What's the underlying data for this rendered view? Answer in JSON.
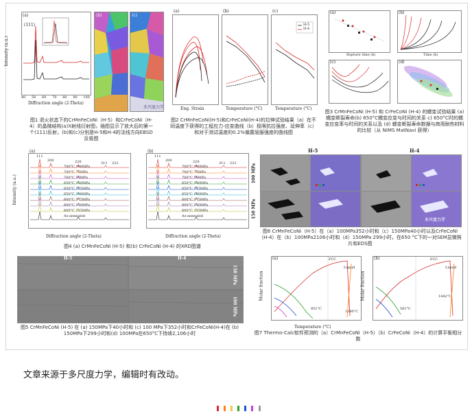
{
  "figures": {
    "fig1": {
      "caption": "图1 退火状态下的CrMnFeCoNi（H-5）和CrFeCoNi（H-4）的晶微结构(a)X射线衍射图，插图显示了放大后的第一个(111)反射，(b)和(c)分别是H-5和H-4的法线方向EBSD反极图",
      "panel_a": "(a)",
      "panel_b": "(b)",
      "panel_c": "(c)",
      "peak_111": "(111)",
      "xlabel": "Diffraction angle (2-Theta)",
      "ylabel": "Intensity (a.u.)",
      "xticks": [
        "40",
        "50",
        "60",
        "70",
        "80",
        "90",
        "100"
      ]
    },
    "fig2": {
      "caption": "图2 CrMnFeCoNi(H-5)和CrFeCoNi(H-4)的拉伸试验结果（a）在不同温度下获得的工程应力-应变曲线（b）极限抗拉强度、延伸率（c）和对于测试温度的0.2%偏置屈服强度的曲线图",
      "panel_a": "(a)",
      "panel_b": "(b)",
      "panel_c": "(c)",
      "xlabel_a": "Eng. Strain",
      "xlabel_bc": "Temperature (°C)",
      "legend": [
        "H-5",
        "H-4"
      ]
    },
    "fig3": {
      "caption": "图3 CrMnFeCoNi (H-5) 和 CrFeCoNi (H-4) 的蠕变试验结果 (a) 蠕变断裂寿命(b) 650°C蠕变应变与时间的关系 c) 650°C时的蠕变应变率与时间的关系以及 (d) 蠕变断裂寿命数据与商用耐热材料的比较（从 NIMS MatNavi 获得）",
      "panels": [
        "(a)",
        "(b)",
        "(c)",
        "(d)"
      ],
      "xlabel_a": "Rupture time (h)",
      "xlabel_b": "Time (h)"
    },
    "fig4": {
      "caption": "图4 (a) CrMnFeCoNi (H-5) 和(b) CrFeCoNi (H-4) 的XRD图谱",
      "panel_a": "(a)",
      "panel_b": "(b)",
      "xlabel": "Diffraction angle (2-Theta)",
      "ylabel": "Intensity (a.u.)",
      "peaks": [
        "111",
        "200",
        "220",
        "311",
        "222"
      ],
      "xticks": [
        "40",
        "50",
        "60",
        "70",
        "80",
        "90",
        "100"
      ],
      "curves_a": [
        "700°C 100MPa",
        "700°C 75MPa",
        "700°C 50MPa",
        "650°C 150MPa",
        "650°C 125MPa",
        "650°C 100MPa",
        "600°C 175MPa",
        "600°C 150MPa",
        "600°C 125MPa",
        "As-annealed"
      ],
      "curves_b": [
        "700°C 100MPa",
        "700°C 75MPa",
        "700°C 50MPa",
        "650°C 150MPa",
        "650°C 125MPa",
        "650°C 100MPa",
        "600°C 175MPa",
        "600°C 150MPa",
        "600°C 125MPa",
        "As-annealed"
      ]
    },
    "fig5": {
      "caption": "图5 CrMnFeCoNi (H-5) 在 (a) 150MPa下40小时和 (c) 100 MPa下352小时和CrFeCoNi(H-4)在 (b) 150MPa下299小时和(d) 100MPa在650°C下持续2,106小时",
      "col_h5": "H-5",
      "col_h4": "H-4",
      "row_150": "150 MPa",
      "row_100": "100 MPa"
    },
    "fig6": {
      "caption": "图6 CrMnFeCoNi（H-5）在（a）100MPa352小时和（c）150MPa40小时以及CrFeCoNi（H-4）在（b）100MPa2106小时和（d）150MPa 299小时，在650 °C下的一对SEM显微照片和EDS图",
      "col_h5": "H-5",
      "col_h4": "H-4",
      "row_100": "100 MPa",
      "row_150": "150 MPa",
      "scale": "5 μm"
    },
    "fig7": {
      "caption": "图7 Thermo-Calc软件预测的（a）CrMnFeCoNi（H-5）（b）CrFeCoNi（H-4）的计算平衡相分数",
      "panel_a": "(a)",
      "panel_b": "(b)",
      "xlabel": "Temperature (°C)",
      "ylabel": "Molar fraction",
      "fcc": "FCC",
      "liquid": "Liquid",
      "yticks": [
        "0.0",
        "0.2",
        "0.4",
        "0.6",
        "0.8",
        "1.0"
      ],
      "xticks": [
        "200",
        "400",
        "600",
        "800",
        "1000",
        "1200",
        "1400"
      ],
      "annot_a1": "851°C",
      "annot_a2": "1280°C",
      "annot_b1": "581°C",
      "annot_b2": "1442°C"
    },
    "watermark": "多尺度力学"
  },
  "source_note": "文章来源于多尺度力学，编辑时有改动。",
  "colors": {
    "red": "#d62728",
    "black": "#222222",
    "blue": "#1f4fd8",
    "green": "#2ca02c",
    "magenta": "#c63fc6",
    "orange": "#ff7f0e"
  }
}
